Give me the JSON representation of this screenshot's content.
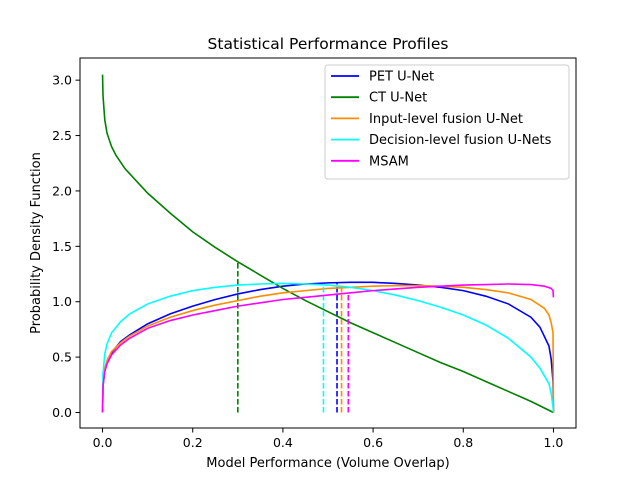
{
  "chart_data": {
    "type": "line",
    "title": "Statistical Performance Profiles",
    "xlabel": "Model Performance (Volume Overlap)",
    "ylabel": "Probability Density Function",
    "xlim": [
      -0.05,
      1.05
    ],
    "ylim": [
      -0.14,
      3.2
    ],
    "xticks": [
      "0.0",
      "0.2",
      "0.4",
      "0.6",
      "0.8",
      "1.0"
    ],
    "yticks": [
      "0.0",
      "0.5",
      "1.0",
      "1.5",
      "2.0",
      "2.5",
      "3.0"
    ],
    "legend_position": "top-right",
    "series": [
      {
        "name": "PET U-Net",
        "color": "#0000ff",
        "x": [
          0.0,
          0.001,
          0.005,
          0.01,
          0.02,
          0.04,
          0.06,
          0.1,
          0.15,
          0.2,
          0.25,
          0.3,
          0.35,
          0.4,
          0.45,
          0.5,
          0.55,
          0.6,
          0.65,
          0.7,
          0.75,
          0.8,
          0.85,
          0.9,
          0.95,
          0.97,
          0.99,
          0.995,
          0.999,
          1.0
        ],
        "y": [
          0.0,
          0.24,
          0.38,
          0.45,
          0.54,
          0.64,
          0.7,
          0.8,
          0.89,
          0.96,
          1.02,
          1.07,
          1.11,
          1.14,
          1.16,
          1.17,
          1.175,
          1.175,
          1.165,
          1.15,
          1.13,
          1.1,
          1.05,
          0.98,
          0.86,
          0.77,
          0.6,
          0.48,
          0.28,
          0.0
        ],
        "mean": 0.52
      },
      {
        "name": "CT U-Net",
        "color": "#008000",
        "x": [
          0.0,
          0.001,
          0.005,
          0.01,
          0.02,
          0.03,
          0.05,
          0.1,
          0.15,
          0.2,
          0.25,
          0.3,
          0.35,
          0.4,
          0.45,
          0.5,
          0.55,
          0.6,
          0.65,
          0.7,
          0.75,
          0.8,
          0.85,
          0.9,
          0.95,
          1.0
        ],
        "y": [
          3.05,
          2.86,
          2.64,
          2.52,
          2.4,
          2.32,
          2.2,
          1.98,
          1.8,
          1.63,
          1.49,
          1.36,
          1.24,
          1.12,
          1.01,
          0.91,
          0.81,
          0.72,
          0.63,
          0.54,
          0.45,
          0.37,
          0.28,
          0.19,
          0.1,
          0.0
        ],
        "mean": 0.3
      },
      {
        "name": "Input-level fusion U-Net",
        "color": "#ff8c00",
        "x": [
          0.0,
          0.001,
          0.005,
          0.01,
          0.02,
          0.04,
          0.06,
          0.1,
          0.15,
          0.2,
          0.25,
          0.3,
          0.35,
          0.4,
          0.45,
          0.5,
          0.55,
          0.6,
          0.65,
          0.7,
          0.75,
          0.8,
          0.85,
          0.9,
          0.95,
          0.98,
          0.99,
          0.995,
          0.999,
          1.0
        ],
        "y": [
          0.0,
          0.26,
          0.4,
          0.47,
          0.55,
          0.63,
          0.69,
          0.78,
          0.86,
          0.92,
          0.97,
          1.01,
          1.05,
          1.08,
          1.1,
          1.12,
          1.13,
          1.14,
          1.145,
          1.145,
          1.14,
          1.13,
          1.11,
          1.08,
          1.02,
          0.94,
          0.88,
          0.81,
          0.72,
          0.0
        ],
        "mean": 0.53
      },
      {
        "name": "Decision-level fusion U-Nets",
        "color": "#00ffff",
        "x": [
          0.0,
          0.001,
          0.005,
          0.01,
          0.02,
          0.04,
          0.06,
          0.1,
          0.15,
          0.2,
          0.25,
          0.3,
          0.35,
          0.4,
          0.45,
          0.5,
          0.55,
          0.6,
          0.65,
          0.7,
          0.75,
          0.8,
          0.85,
          0.9,
          0.95,
          0.97,
          0.99,
          0.995,
          0.999,
          1.0
        ],
        "y": [
          0.0,
          0.35,
          0.53,
          0.62,
          0.72,
          0.82,
          0.89,
          0.98,
          1.05,
          1.1,
          1.13,
          1.15,
          1.16,
          1.165,
          1.16,
          1.15,
          1.13,
          1.1,
          1.06,
          1.01,
          0.95,
          0.88,
          0.79,
          0.67,
          0.5,
          0.4,
          0.26,
          0.17,
          0.05,
          0.0
        ],
        "mean": 0.49
      },
      {
        "name": "MSAM",
        "color": "#ff00ff",
        "x": [
          0.0,
          0.001,
          0.005,
          0.01,
          0.02,
          0.04,
          0.06,
          0.1,
          0.15,
          0.2,
          0.25,
          0.3,
          0.35,
          0.4,
          0.45,
          0.5,
          0.55,
          0.6,
          0.65,
          0.7,
          0.75,
          0.8,
          0.85,
          0.9,
          0.95,
          0.98,
          0.995,
          0.999,
          1.0
        ],
        "y": [
          0.0,
          0.24,
          0.37,
          0.44,
          0.52,
          0.61,
          0.67,
          0.76,
          0.83,
          0.88,
          0.92,
          0.96,
          0.99,
          1.02,
          1.04,
          1.06,
          1.08,
          1.1,
          1.115,
          1.13,
          1.14,
          1.15,
          1.155,
          1.16,
          1.155,
          1.14,
          1.12,
          1.1,
          1.04
        ],
        "mean": 0.545
      }
    ]
  }
}
